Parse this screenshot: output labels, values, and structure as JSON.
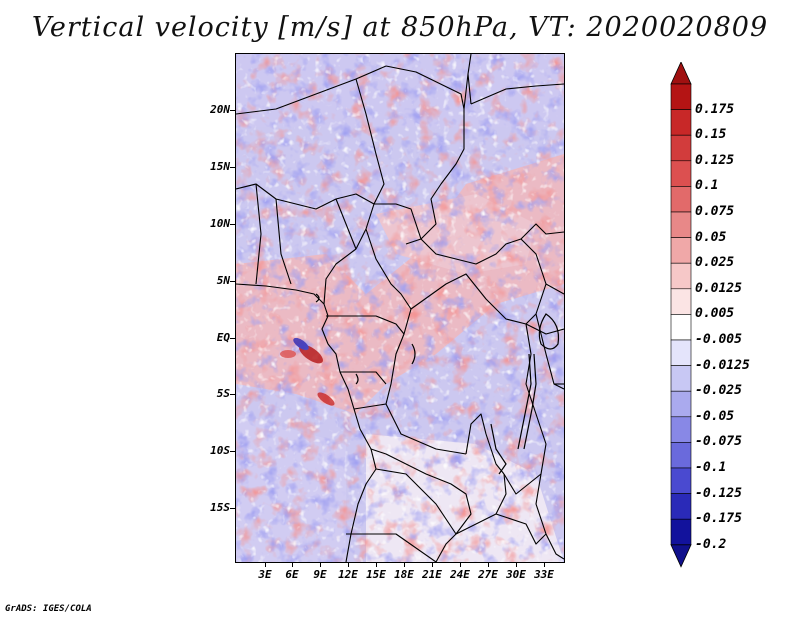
{
  "title": "Vertical velocity [m/s] at 850hPa, VT: 2020020809",
  "credit": "GrADS: IGES/COLA",
  "map": {
    "lat_labels": [
      "20N",
      "15N",
      "10N",
      "5N",
      "EQ",
      "5S",
      "10S",
      "15S"
    ],
    "lon_labels": [
      "3E",
      "6E",
      "9E",
      "12E",
      "15E",
      "18E",
      "21E",
      "24E",
      "27E",
      "30E",
      "33E"
    ]
  },
  "colorbar": {
    "levels": [
      "0.175",
      "0.15",
      "0.125",
      "0.1",
      "0.075",
      "0.05",
      "0.025",
      "0.0125",
      "0.005",
      "-0.005",
      "-0.0125",
      "-0.025",
      "-0.05",
      "-0.075",
      "-0.1",
      "-0.125",
      "-0.175",
      "-0.2"
    ],
    "colors": [
      "#b41414",
      "#c82828",
      "#d23c3c",
      "#dc5050",
      "#e26a6a",
      "#e88888",
      "#f0a8a8",
      "#f6c8c8",
      "#fbe4e4",
      "#ffffff",
      "#e4e4fb",
      "#c8c8f4",
      "#aaaaee",
      "#8888e6",
      "#6a6adc",
      "#4a4ad0",
      "#2a2ab8",
      "#12129c"
    ],
    "top_color": "#a01010",
    "bottom_color": "#10108c"
  },
  "colors": {
    "positive": "#dc5050",
    "negative": "#6a6adc"
  }
}
